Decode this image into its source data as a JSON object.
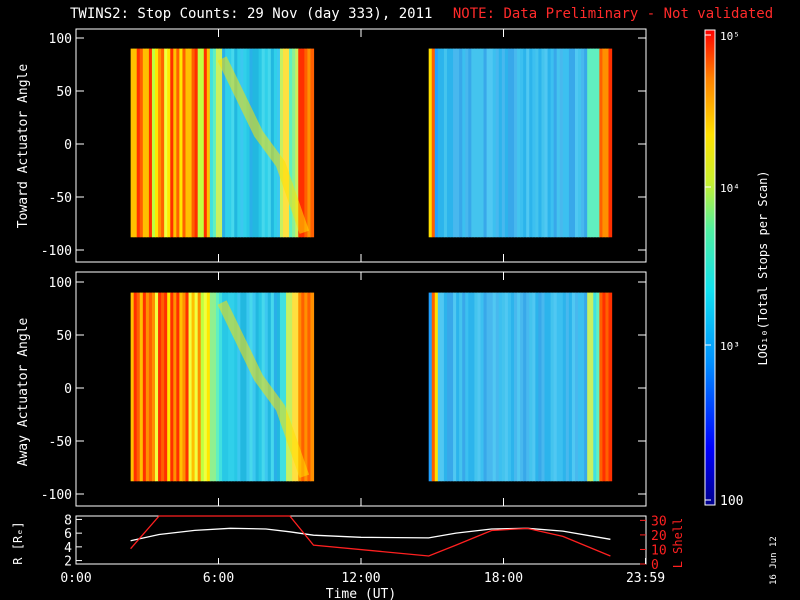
{
  "title": {
    "main": "TWINS2: Stop Counts: 29 Nov (day 333), 2011",
    "note": "NOTE: Data Preliminary - Not validated",
    "note_color": "#ff2a2a"
  },
  "date_stamp": "16 Jun 12",
  "chart_data": [
    {
      "type": "heatmap",
      "id": "toward",
      "ylabel": "Toward Actuator Angle",
      "ylim": [
        -100,
        100
      ],
      "yticks": [
        "100",
        "50",
        "0",
        "-50",
        "-100"
      ],
      "xlim": [
        0,
        24
      ],
      "data_intervals_hours": [
        [
          2.3,
          10.0
        ],
        [
          14.85,
          22.55
        ]
      ],
      "angle_range": [
        -88,
        90
      ]
    },
    {
      "type": "heatmap",
      "id": "away",
      "ylabel": "Away Actuator Angle",
      "ylim": [
        -100,
        100
      ],
      "yticks": [
        "100",
        "50",
        "0",
        "-50",
        "-100"
      ],
      "xlim": [
        0,
        24
      ],
      "data_intervals_hours": [
        [
          2.3,
          10.0
        ],
        [
          14.85,
          22.55
        ]
      ],
      "angle_range": [
        -88,
        90
      ]
    },
    {
      "type": "line",
      "id": "orbit",
      "ylabel_left": "R [Rₑ]",
      "ylabel_right": "L Shell",
      "xlabel": "Time (UT)",
      "xticks": [
        "0:00",
        "6:00",
        "12:00",
        "18:00",
        "23:59"
      ],
      "yticks_left": [
        "8",
        "6",
        "4",
        "2"
      ],
      "yticks_right": [
        "30",
        "20",
        "10",
        "0"
      ],
      "ylim_left": [
        1.5,
        8.5
      ],
      "ylim_right": [
        0,
        33
      ],
      "series": [
        {
          "name": "R",
          "color": "#ffffff",
          "x": [
            2.3,
            3.5,
            5.0,
            6.5,
            8.0,
            9.0,
            10.0,
            12.0,
            14.85,
            16.0,
            17.5,
            19.0,
            20.5,
            22.5
          ],
          "y": [
            4.9,
            5.8,
            6.4,
            6.7,
            6.6,
            6.2,
            5.7,
            5.4,
            5.3,
            6.0,
            6.6,
            6.7,
            6.3,
            5.1
          ]
        },
        {
          "name": "L Shell",
          "color": "#ff2020",
          "x": [
            2.3,
            3.5,
            9.0,
            10.0,
            14.85,
            16.0,
            17.5,
            19.0,
            20.5,
            22.5
          ],
          "y": [
            10.5,
            33,
            33,
            13.0,
            5.5,
            13.0,
            23.0,
            24.5,
            19.0,
            5.5
          ]
        }
      ]
    }
  ],
  "colorbar": {
    "label": "LOG₁₀(Total Stops per Scan)",
    "ticks": [
      "10⁵",
      "10⁴",
      "10³",
      "100"
    ]
  }
}
